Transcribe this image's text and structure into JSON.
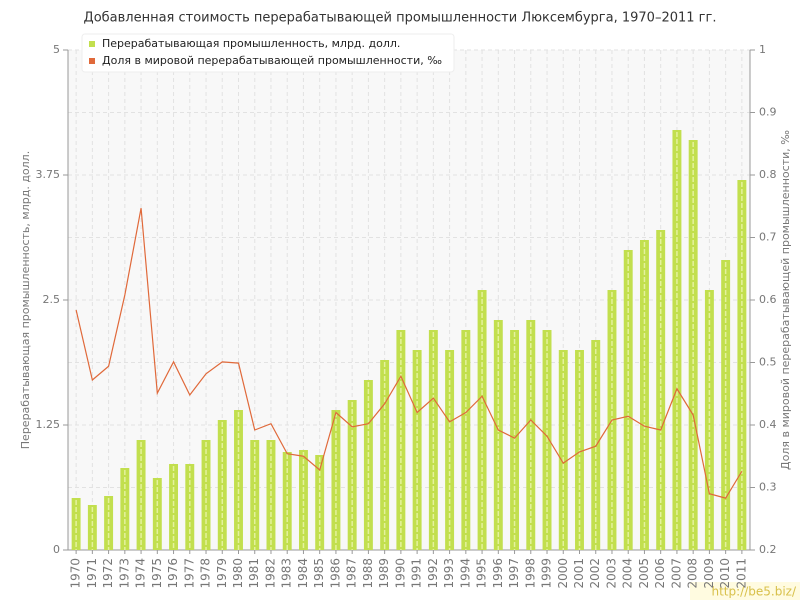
{
  "chart_data": {
    "type": "bar",
    "title": "Добавленная стоимость перерабатывающей промышленности Люксембурга, 1970–2011 гг.",
    "ylabel": "Перерабатывающая промышленность, млрд. долл.",
    "y2label": "Доля в мировой перерабатывающей промышленности, ‰",
    "categories": [
      "1970",
      "1971",
      "1972",
      "1973",
      "1974",
      "1975",
      "1976",
      "1977",
      "1978",
      "1979",
      "1980",
      "1981",
      "1982",
      "1983",
      "1984",
      "1985",
      "1986",
      "1987",
      "1988",
      "1989",
      "1990",
      "1991",
      "1992",
      "1993",
      "1994",
      "1995",
      "1996",
      "1997",
      "1998",
      "1999",
      "2000",
      "2001",
      "2002",
      "2003",
      "2004",
      "2005",
      "2006",
      "2007",
      "2008",
      "2009",
      "2010",
      "2011"
    ],
    "series": [
      {
        "name": "Перерабатывающая промышленность, млрд. долл.",
        "type": "bar",
        "color": "#c2df4e",
        "values": [
          0.52,
          0.45,
          0.54,
          0.82,
          1.1,
          0.72,
          0.86,
          0.86,
          1.1,
          1.3,
          1.4,
          1.1,
          1.1,
          0.98,
          1.0,
          0.95,
          1.4,
          1.5,
          1.7,
          1.9,
          2.2,
          2.0,
          2.2,
          2.0,
          2.2,
          2.6,
          2.3,
          2.2,
          2.3,
          2.2,
          2.0,
          2.0,
          2.1,
          2.6,
          3.0,
          3.1,
          3.2,
          4.2,
          4.1,
          2.6,
          2.9,
          3.7
        ]
      },
      {
        "name": "Доля в мировой перерабатывающей промышленности, ‰",
        "type": "line",
        "axis": "y2",
        "color": "#e0693a",
        "values": [
          0.584,
          0.472,
          0.494,
          0.608,
          0.747,
          0.451,
          0.501,
          0.448,
          0.482,
          0.501,
          0.499,
          0.392,
          0.402,
          0.354,
          0.35,
          0.328,
          0.42,
          0.397,
          0.402,
          0.434,
          0.478,
          0.42,
          0.443,
          0.405,
          0.42,
          0.446,
          0.392,
          0.379,
          0.408,
          0.382,
          0.339,
          0.357,
          0.366,
          0.408,
          0.414,
          0.398,
          0.392,
          0.458,
          0.416,
          0.29,
          0.283,
          0.326
        ]
      }
    ],
    "ylim": [
      0,
      5
    ],
    "yticks": [
      0,
      1.25,
      2.5,
      3.75,
      5
    ],
    "y2lim": [
      0.2,
      1
    ],
    "y2ticks": [
      0.2,
      0.3,
      0.4,
      0.5,
      0.6,
      0.7,
      0.8,
      0.9,
      1
    ],
    "grid": true,
    "legend": "upper left"
  },
  "watermark": "http://be5.biz/"
}
